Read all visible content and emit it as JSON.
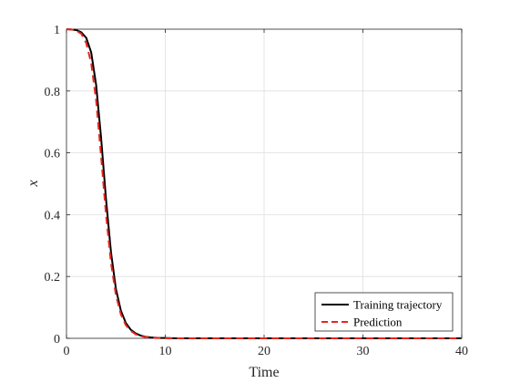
{
  "chart_data": {
    "type": "line",
    "xlabel": "Time",
    "ylabel": "x",
    "xlim": [
      0,
      40
    ],
    "ylim": [
      0,
      1
    ],
    "xticks": [
      0,
      10,
      20,
      30,
      40
    ],
    "yticks": [
      0,
      0.2,
      0.4,
      0.6,
      0.8,
      1
    ],
    "xtick_labels": [
      "0",
      "10",
      "20",
      "30",
      "40"
    ],
    "ytick_labels": [
      "0",
      "0.2",
      "0.4",
      "0.6",
      "0.8",
      "1"
    ],
    "grid": true,
    "legend_position": "bottom-right",
    "series": [
      {
        "name": "Training trajectory",
        "color": "#000000",
        "style": "solid",
        "x": [
          0,
          0.5,
          1,
          1.5,
          2,
          2.5,
          3,
          3.5,
          4,
          4.5,
          5,
          5.5,
          6,
          6.5,
          7,
          7.5,
          8,
          8.5,
          9,
          9.5,
          10,
          11,
          12,
          14,
          16,
          20,
          25,
          30,
          35,
          40
        ],
        "y": [
          1.0,
          0.999,
          0.997,
          0.99,
          0.972,
          0.925,
          0.82,
          0.65,
          0.45,
          0.28,
          0.16,
          0.09,
          0.05,
          0.028,
          0.016,
          0.009,
          0.005,
          0.003,
          0.002,
          0.001,
          0.001,
          0.0,
          0.0,
          0.0,
          0.0,
          0.0,
          0.0,
          0.0,
          0.0,
          0.0
        ]
      },
      {
        "name": "Prediction",
        "color": "#e8251f",
        "style": "dashed",
        "x": [
          0,
          0.5,
          1,
          1.5,
          2,
          2.5,
          3,
          3.5,
          4,
          4.5,
          5,
          5.5,
          6,
          6.5,
          7,
          7.5,
          8,
          8.5,
          9,
          9.5,
          10,
          11,
          12,
          14,
          16,
          20,
          25,
          30,
          35,
          40
        ],
        "y": [
          1.0,
          0.999,
          0.995,
          0.985,
          0.955,
          0.89,
          0.77,
          0.59,
          0.4,
          0.245,
          0.14,
          0.078,
          0.043,
          0.024,
          0.013,
          0.007,
          0.004,
          0.002,
          0.001,
          0.001,
          0.0,
          0.0,
          0.0,
          0.0,
          0.0,
          0.0,
          0.0,
          0.0,
          0.0,
          0.0
        ]
      }
    ]
  }
}
